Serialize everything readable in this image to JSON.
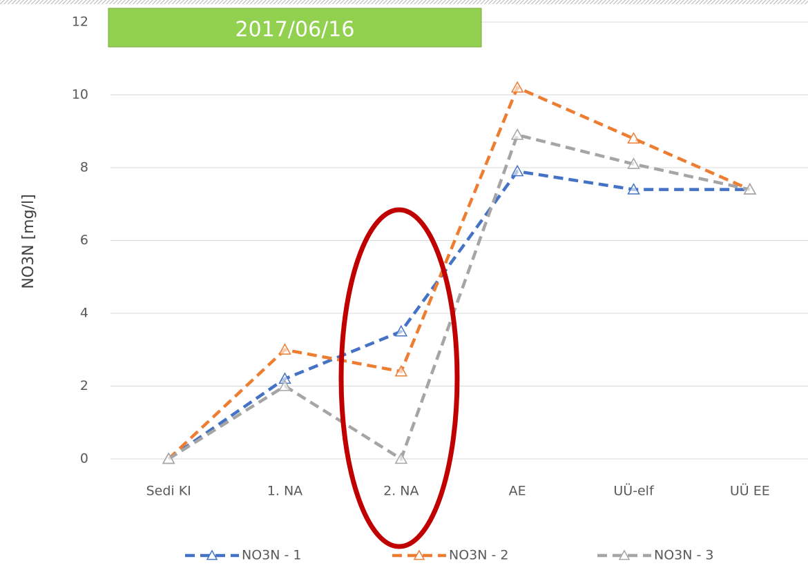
{
  "chart_data": {
    "type": "line",
    "annotation": "2017/06/16",
    "y_label": "NO3N [mg/l]",
    "categories": [
      "Sedi KI",
      "1. NA",
      "2. NA",
      "AE",
      "UÜ-elf",
      "UÜ EE"
    ],
    "series": [
      {
        "name": "NO3N - 1",
        "color": "#4472c4",
        "values": [
          0,
          2.2,
          3.5,
          7.9,
          7.4,
          7.4
        ]
      },
      {
        "name": "NO3N - 2",
        "color": "#ed7d31",
        "values": [
          0,
          3.0,
          2.4,
          10.2,
          8.8,
          7.4
        ]
      },
      {
        "name": "NO3N - 3",
        "color": "#a5a5a5",
        "values": [
          0,
          2.0,
          0,
          8.9,
          8.1,
          7.4
        ]
      }
    ],
    "ylim": [
      0,
      12
    ],
    "yticks": [
      0,
      2,
      4,
      6,
      8,
      10,
      12
    ],
    "grid": true,
    "legend": "bottom"
  }
}
